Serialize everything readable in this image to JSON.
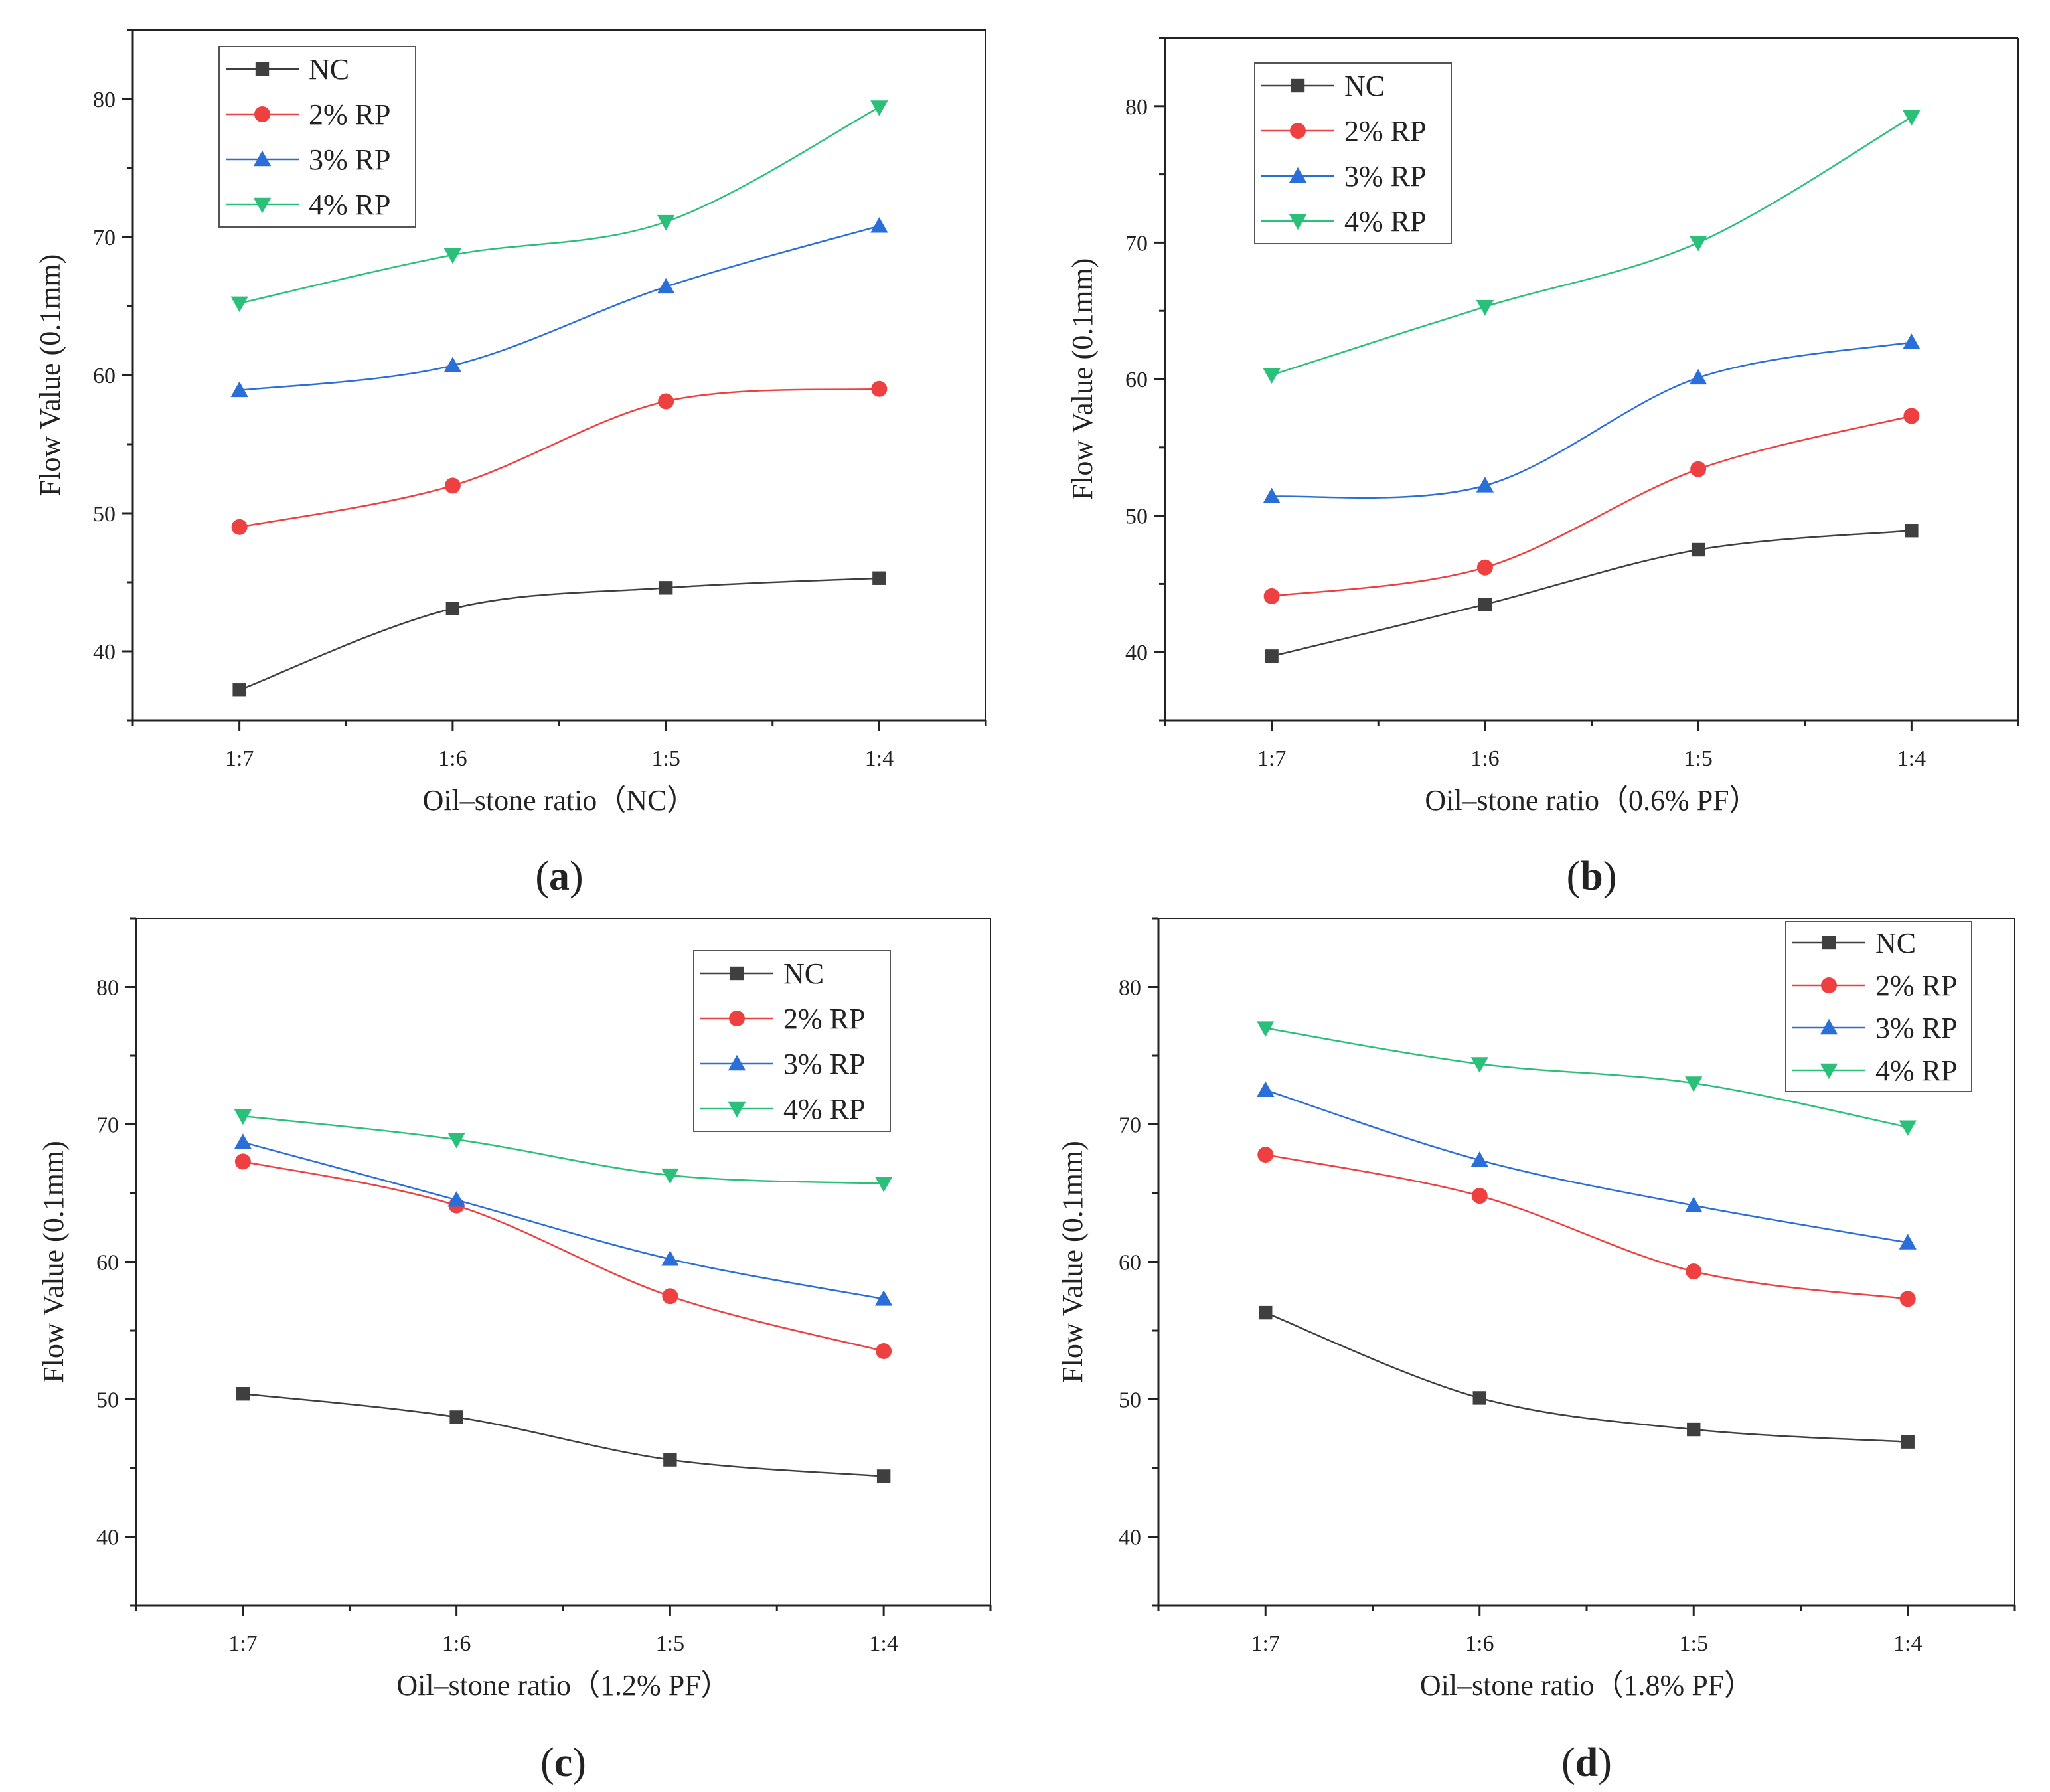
{
  "figure": {
    "colors": {
      "nc": "#3f3f3f",
      "rp2": "#ee4040",
      "rp3": "#2a6fd8",
      "rp4": "#2bc07a",
      "axis": "#222222"
    }
  },
  "chart_data": [
    {
      "type": "line",
      "panel": "a",
      "panel_label": "(a)",
      "panel_open": "(",
      "panel_close": ")",
      "categories": [
        "1:7",
        "1:6",
        "1:5",
        "1:4"
      ],
      "xlabel": "Oil–stone ratio（NC）",
      "ylabel": "Flow Value (0.1mm)",
      "ylim": [
        35,
        85
      ],
      "yticks": [
        40,
        50,
        60,
        70,
        80
      ],
      "legend": "top-left",
      "series": [
        {
          "name": "NC",
          "marker": "square",
          "color": "#3f3f3f",
          "values": [
            37.2,
            43.1,
            44.6,
            45.3
          ]
        },
        {
          "name": "2% RP",
          "marker": "circle",
          "color": "#ee4040",
          "values": [
            49.0,
            52.0,
            58.1,
            59.0
          ]
        },
        {
          "name": "3% RP",
          "marker": "triangle-up",
          "color": "#2a6fd8",
          "values": [
            58.9,
            60.7,
            66.4,
            70.8
          ]
        },
        {
          "name": "4% RP",
          "marker": "triangle-down",
          "color": "#2bc07a",
          "values": [
            65.2,
            68.7,
            71.1,
            79.4
          ]
        }
      ]
    },
    {
      "type": "line",
      "panel": "b",
      "panel_label": "(b)",
      "panel_open": "(",
      "panel_close": ")",
      "categories": [
        "1:7",
        "1:6",
        "1:5",
        "1:4"
      ],
      "xlabel": "Oil–stone ratio（0.6% PF）",
      "ylabel": "Flow Value (0.1mm)",
      "ylim": [
        35,
        85
      ],
      "yticks": [
        40,
        50,
        60,
        70,
        80
      ],
      "legend": "top-left",
      "series": [
        {
          "name": "NC",
          "marker": "square",
          "color": "#3f3f3f",
          "values": [
            39.7,
            43.5,
            47.5,
            48.9
          ]
        },
        {
          "name": "2% RP",
          "marker": "circle",
          "color": "#ee4040",
          "values": [
            44.1,
            46.2,
            53.4,
            57.3
          ]
        },
        {
          "name": "3% RP",
          "marker": "triangle-up",
          "color": "#2a6fd8",
          "values": [
            51.4,
            52.2,
            60.1,
            62.7
          ]
        },
        {
          "name": "4% RP",
          "marker": "triangle-down",
          "color": "#2bc07a",
          "values": [
            60.3,
            65.3,
            70.0,
            79.2
          ]
        }
      ]
    },
    {
      "type": "line",
      "panel": "c",
      "panel_label": "(c)",
      "panel_open": "(",
      "panel_close": ")",
      "categories": [
        "1:7",
        "1:6",
        "1:5",
        "1:4"
      ],
      "xlabel": "Oil–stone ratio（1.2% PF）",
      "ylabel": "Flow Value (0.1mm)",
      "ylim": [
        35,
        85
      ],
      "yticks": [
        40,
        50,
        60,
        70,
        80
      ],
      "legend": "top-right",
      "series": [
        {
          "name": "NC",
          "marker": "square",
          "color": "#3f3f3f",
          "values": [
            50.4,
            48.7,
            45.6,
            44.4
          ]
        },
        {
          "name": "2% RP",
          "marker": "circle",
          "color": "#ee4040",
          "values": [
            67.3,
            64.1,
            57.5,
            53.5
          ]
        },
        {
          "name": "3% RP",
          "marker": "triangle-up",
          "color": "#2a6fd8",
          "values": [
            68.7,
            64.5,
            60.2,
            57.3
          ]
        },
        {
          "name": "4% RP",
          "marker": "triangle-down",
          "color": "#2bc07a",
          "values": [
            70.6,
            68.9,
            66.3,
            65.7
          ]
        }
      ]
    },
    {
      "type": "line",
      "panel": "d",
      "panel_label": "(d)",
      "panel_open": "(",
      "panel_close": ")",
      "categories": [
        "1:7",
        "1:6",
        "1:5",
        "1:4"
      ],
      "xlabel": "Oil–stone ratio（1.8% PF）",
      "ylabel": "Flow Value (0.1mm)",
      "ylim": [
        35,
        85
      ],
      "yticks": [
        40,
        50,
        60,
        70,
        80
      ],
      "legend": "top-right",
      "series": [
        {
          "name": "NC",
          "marker": "square",
          "color": "#3f3f3f",
          "values": [
            56.3,
            50.1,
            47.8,
            46.9
          ]
        },
        {
          "name": "2% RP",
          "marker": "circle",
          "color": "#ee4040",
          "values": [
            67.8,
            64.8,
            59.3,
            57.3
          ]
        },
        {
          "name": "3% RP",
          "marker": "triangle-up",
          "color": "#2a6fd8",
          "values": [
            72.5,
            67.4,
            64.1,
            61.4
          ]
        },
        {
          "name": "4% RP",
          "marker": "triangle-down",
          "color": "#2bc07a",
          "values": [
            77.0,
            74.4,
            73.0,
            69.8
          ]
        }
      ]
    }
  ]
}
